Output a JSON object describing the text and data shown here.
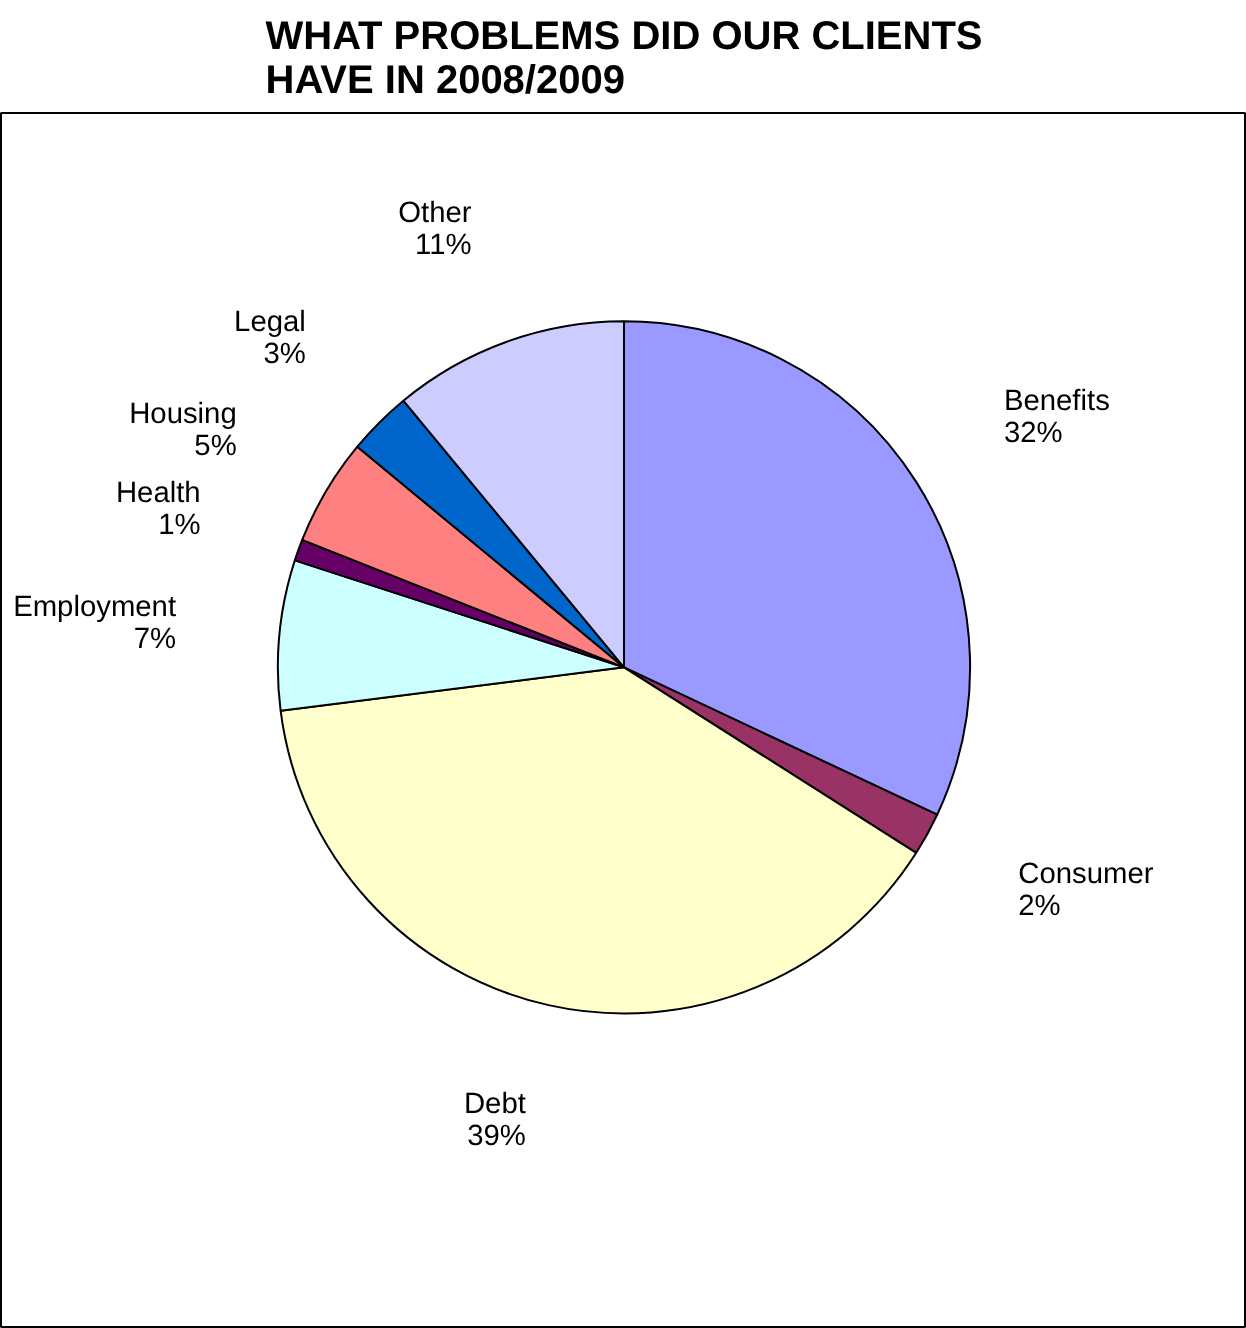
{
  "chart_data": {
    "type": "pie",
    "title": "WHAT PROBLEMS DID OUR CLIENTS HAVE IN 2008/2009",
    "categories": [
      "Benefits",
      "Consumer",
      "Debt",
      "Employment",
      "Health",
      "Housing",
      "Legal",
      "Other"
    ],
    "values": [
      32,
      2,
      39,
      7,
      1,
      5,
      3,
      11
    ],
    "value_labels": [
      "32%",
      "2%",
      "39%",
      "7%",
      "1%",
      "5%",
      "3%",
      "11%"
    ],
    "colors": [
      "#9999ff",
      "#993366",
      "#ffffcc",
      "#ccffff",
      "#660066",
      "#ff8080",
      "#0066cc",
      "#ccccff"
    ]
  }
}
